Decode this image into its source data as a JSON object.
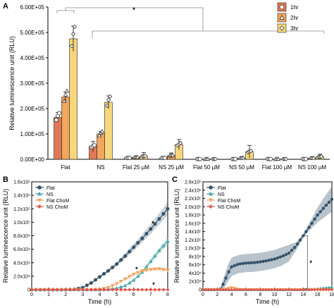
{
  "panels": {
    "a": "A",
    "b": "B",
    "c": "C"
  },
  "colors": {
    "hr1": "#e07a56",
    "hr2": "#f3a65e",
    "hr3": "#f7d77c",
    "flat": "#33536b",
    "ns": "#4aa6a7",
    "flat_chom": "#f4a261",
    "ns_chom": "#e2574c"
  },
  "chart_data": [
    {
      "type": "bar",
      "panel": "A",
      "ylabel": "Relative luminescence unit (RLU)",
      "ylim": [
        0,
        600000
      ],
      "yticks": [
        "0.00E+00",
        "1.00E+05",
        "2.00E+05",
        "3.00E+05",
        "4.00E+05",
        "5.00E+05",
        "6.00E+05"
      ],
      "categories": [
        "Flat",
        "NS",
        "Flat 25 µM",
        "NS 25 µM",
        "Flat 50 µM",
        "NS 50 µM",
        "Flat 100 µM",
        "NS 100 µM"
      ],
      "series": [
        {
          "name": "1hr",
          "values": [
            165000,
            50000,
            5000,
            5000,
            1000,
            1000,
            1000,
            1000
          ],
          "errors": [
            20000,
            20000,
            3000,
            3000,
            1000,
            1000,
            1000,
            1000
          ]
        },
        {
          "name": "2hr",
          "values": [
            245000,
            100000,
            8000,
            15000,
            1000,
            5000,
            1000,
            5000
          ],
          "errors": [
            20000,
            10000,
            5000,
            10000,
            1000,
            5000,
            1000,
            3000
          ]
        },
        {
          "name": "3hr",
          "values": [
            475000,
            225000,
            12000,
            58000,
            1000,
            30000,
            1000,
            10000
          ],
          "errors": [
            50000,
            25000,
            15000,
            20000,
            1000,
            25000,
            1000,
            10000
          ]
        }
      ],
      "annotations": [
        "*"
      ],
      "legend_position": "top-right"
    },
    {
      "type": "line",
      "panel": "B",
      "xlabel": "Time (h)",
      "ylabel": "Relative luminescence unit (RLU)",
      "xlim": [
        0,
        8
      ],
      "ylim": [
        0,
        160000
      ],
      "xticks": [
        "0",
        "1",
        "2",
        "3",
        "4",
        "5",
        "6",
        "7",
        "8"
      ],
      "yticks": [
        "0",
        "2.0x10⁴",
        "4.0x10⁴",
        "6.0x10⁴",
        "8.0x10⁴",
        "1.0x10⁵",
        "1.2x10⁵",
        "1.4x10⁵",
        "1.6x10⁵"
      ],
      "series": [
        {
          "name": "Flat",
          "x": [
            0,
            1,
            2,
            2.5,
            3,
            3.5,
            4,
            4.5,
            5,
            5.5,
            6,
            6.5,
            7,
            7.5,
            8
          ],
          "y": [
            0,
            0,
            0,
            500,
            3000,
            10000,
            19000,
            28000,
            38000,
            50000,
            63000,
            76000,
            90000,
            105000,
            120000
          ]
        },
        {
          "name": "NS",
          "x": [
            0,
            1,
            2,
            3,
            4,
            4.5,
            5,
            5.5,
            6,
            6.5,
            7,
            7.5,
            8
          ],
          "y": [
            0,
            0,
            0,
            0,
            0,
            500,
            2000,
            6000,
            14000,
            26000,
            42000,
            58000,
            72000
          ]
        },
        {
          "name": "Flat ChoM",
          "x": [
            0,
            1,
            2,
            3,
            4,
            4.5,
            5,
            5.5,
            6,
            6.5,
            7,
            7.5,
            8
          ],
          "y": [
            0,
            0,
            0,
            0,
            500,
            3000,
            9000,
            16000,
            23000,
            28000,
            30000,
            31000,
            29000
          ]
        },
        {
          "name": "NS ChoM",
          "x": [
            0,
            1,
            2,
            3,
            4,
            5,
            6,
            7,
            8
          ],
          "y": [
            0,
            0,
            0,
            0,
            0,
            0,
            0,
            0,
            0
          ]
        }
      ],
      "annotations": [
        "*",
        "*",
        "*"
      ],
      "legend_position": "top-left"
    },
    {
      "type": "line",
      "panel": "C",
      "xlabel": "Time (h)",
      "ylabel": "Relative luminescence unit (RLU)",
      "xlim": [
        0,
        18
      ],
      "ylim": [
        0,
        260000
      ],
      "xticks": [
        "0",
        "2",
        "4",
        "6",
        "8",
        "10",
        "12",
        "14",
        "16",
        "18"
      ],
      "yticks": [
        "0",
        "2x10⁴",
        "4x10⁴",
        "6x10⁴",
        "8x10⁴",
        "1.0x10⁵",
        "1.2x10⁵",
        "1.4x10⁵",
        "1.6x10⁵",
        "1.8x10⁵",
        "2.0x10⁵",
        "2.2x10⁵",
        "2.4x10⁵",
        "2.6x10⁵"
      ],
      "series": [
        {
          "name": "Flat",
          "x": [
            0,
            1,
            2,
            2.5,
            3,
            3.5,
            4,
            5,
            6,
            7,
            8,
            9,
            10,
            11,
            12,
            13,
            14,
            15,
            16,
            17,
            18
          ],
          "y": [
            0,
            0,
            0,
            2000,
            20000,
            40000,
            55000,
            62000,
            64000,
            65000,
            67000,
            70000,
            74000,
            80000,
            88000,
            105000,
            130000,
            155000,
            180000,
            200000,
            218000
          ],
          "band": [
            0,
            0,
            0,
            4000,
            15000,
            20000,
            22000,
            22000,
            22000,
            22000,
            22000,
            22000,
            22000,
            22000,
            20000,
            10000,
            4000,
            10000,
            18000,
            25000,
            30000
          ]
        },
        {
          "name": "NS",
          "x": [
            0,
            2,
            4,
            6,
            8,
            10,
            12,
            14,
            15,
            16,
            17,
            18
          ],
          "y": [
            0,
            0,
            0,
            0,
            0,
            0,
            0,
            0,
            500,
            2000,
            4000,
            6000
          ]
        },
        {
          "name": "Flat ChoM",
          "x": [
            0,
            2,
            3,
            3.5,
            4,
            4.5,
            5,
            6,
            8,
            10,
            12,
            14,
            16,
            18
          ],
          "y": [
            0,
            0,
            1000,
            3000,
            5000,
            3000,
            1000,
            0,
            0,
            0,
            0,
            0,
            0,
            0
          ]
        },
        {
          "name": "NS ChoM",
          "x": [
            0,
            2,
            4,
            6,
            8,
            10,
            12,
            14,
            16,
            18
          ],
          "y": [
            0,
            0,
            0,
            0,
            0,
            0,
            0,
            0,
            0,
            0
          ]
        }
      ],
      "annotations": [
        "*"
      ],
      "legend_position": "top-left"
    }
  ]
}
